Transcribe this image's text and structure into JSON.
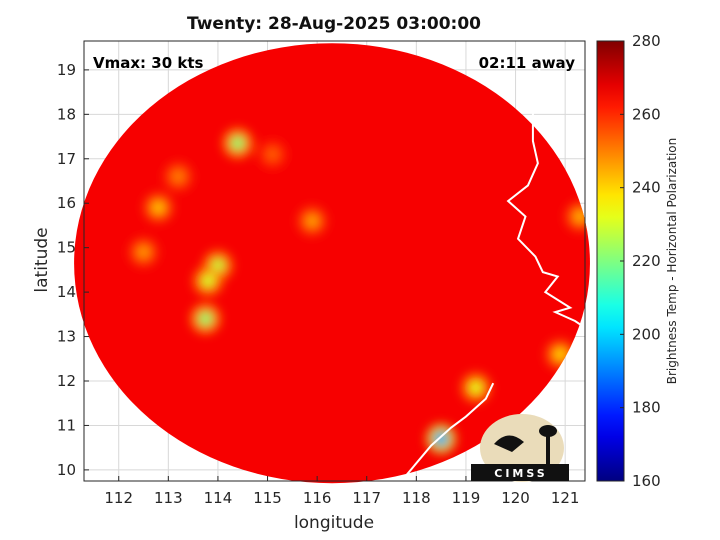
{
  "chart_data": {
    "type": "heatmap",
    "title": "Twenty: 28-Aug-2025 03:00:00",
    "xlabel": "longitude",
    "ylabel": "latitude",
    "xlim": [
      111.3,
      121.4
    ],
    "ylim": [
      9.75,
      19.65
    ],
    "x_ticks": [
      112,
      113,
      114,
      115,
      116,
      117,
      118,
      119,
      120,
      121
    ],
    "y_ticks": [
      10,
      11,
      12,
      13,
      14,
      15,
      16,
      17,
      18,
      19
    ],
    "grid": true,
    "annotations": {
      "vmax": "Vmax: 30 kts",
      "time_away": "02:11 away"
    },
    "colorbar": {
      "label": "Brightness Temp - Horizontal Polarization",
      "min": 160,
      "max": 280,
      "ticks": [
        160,
        180,
        200,
        220,
        240,
        260,
        280
      ],
      "colormap": "jet",
      "position": "right"
    },
    "swath": {
      "center_lon": 116.3,
      "center_lat": 14.65,
      "radius_lon": 5.2,
      "radius_lat": 4.95
    },
    "background_value": 266,
    "features": [
      {
        "lon": 114.4,
        "lat": 17.35,
        "value": 222
      },
      {
        "lon": 114.0,
        "lat": 14.6,
        "value": 228
      },
      {
        "lon": 113.8,
        "lat": 14.25,
        "value": 230
      },
      {
        "lon": 113.75,
        "lat": 13.4,
        "value": 222
      },
      {
        "lon": 112.8,
        "lat": 15.9,
        "value": 242
      },
      {
        "lon": 112.5,
        "lat": 14.9,
        "value": 247
      },
      {
        "lon": 113.2,
        "lat": 16.6,
        "value": 250
      },
      {
        "lon": 115.1,
        "lat": 17.1,
        "value": 254
      },
      {
        "lon": 115.9,
        "lat": 15.6,
        "value": 246
      },
      {
        "lon": 118.5,
        "lat": 10.7,
        "value": 195
      },
      {
        "lon": 119.2,
        "lat": 11.85,
        "value": 232
      },
      {
        "lon": 120.9,
        "lat": 12.6,
        "value": 240
      },
      {
        "lon": 121.3,
        "lat": 15.7,
        "value": 244
      }
    ],
    "logo": "CIMSS",
    "colors": {
      "swath_base": "#0a2fd8",
      "outside": "#ffffff",
      "coast": "#ffffff",
      "grid": "#d8d8d8"
    }
  }
}
